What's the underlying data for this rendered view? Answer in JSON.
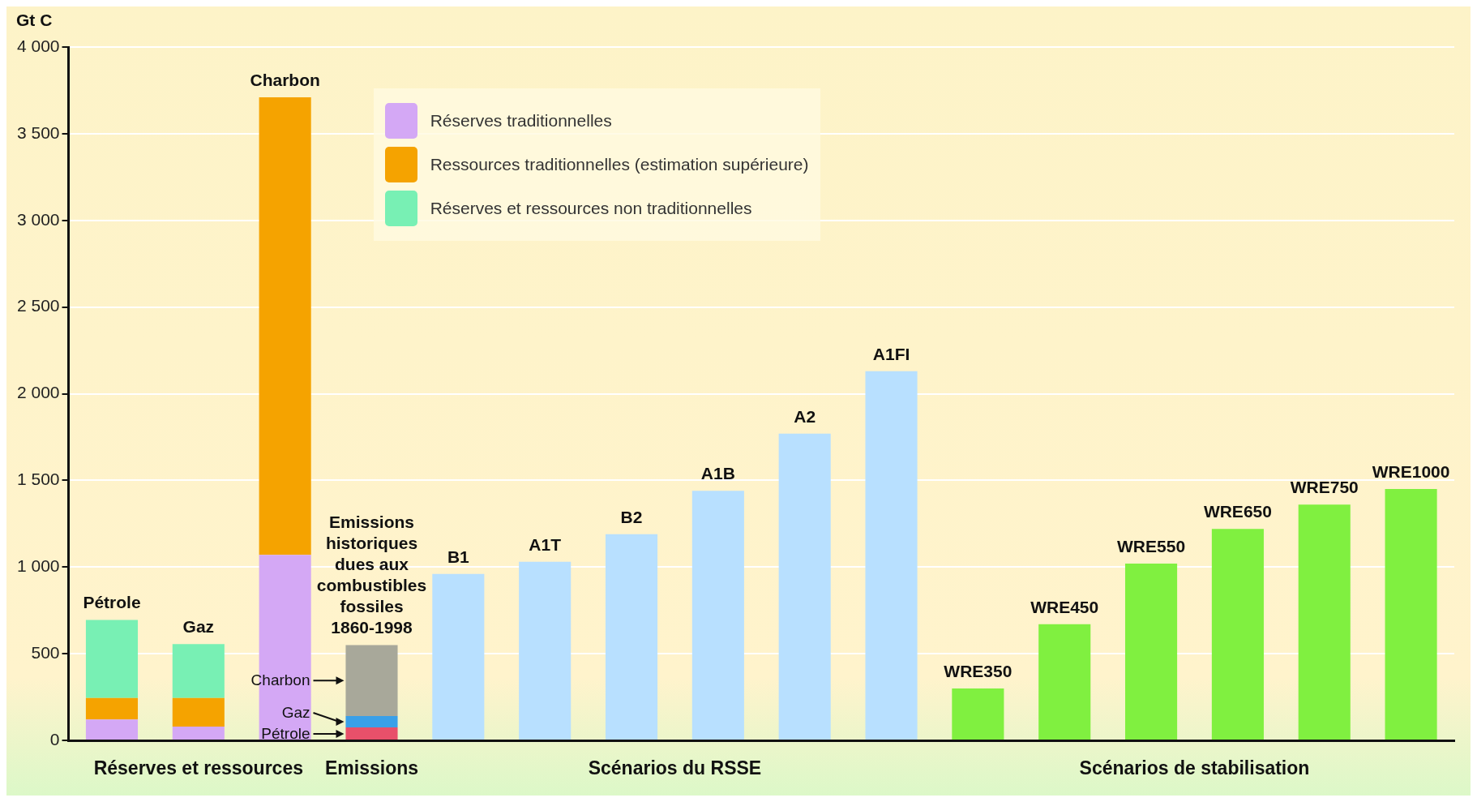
{
  "chart_data": {
    "type": "bar",
    "stacked": true,
    "ylabel": "Gt C",
    "categories": [
      "Pétrole",
      "Gaz",
      "Charbon",
      "Emissions historiques dues aux combustibles fossiles 1860-1998",
      "B1",
      "A1T",
      "B2",
      "A1B",
      "A2",
      "A1FI",
      "WRE350",
      "WRE450",
      "WRE550",
      "WRE650",
      "WRE750",
      "WRE1000"
    ],
    "series": [
      {
        "name": "Réserves traditionnelles",
        "color": "#d4a8f5",
        "values": [
          120,
          80,
          1070,
          null,
          null,
          null,
          null,
          null,
          null,
          null,
          null,
          null,
          null,
          null,
          null,
          null
        ]
      },
      {
        "name": "Ressources traditionnelles (estimation supérieure)",
        "color": "#f5a300",
        "values": [
          125,
          165,
          2640,
          null,
          null,
          null,
          null,
          null,
          null,
          null,
          null,
          null,
          null,
          null,
          null,
          null
        ]
      },
      {
        "name": "Réserves et ressources non traditionnelles",
        "color": "#78f0b4",
        "values": [
          450,
          310,
          null,
          null,
          null,
          null,
          null,
          null,
          null,
          null,
          null,
          null,
          null,
          null,
          null,
          null
        ]
      },
      {
        "name": "Pétrole",
        "color": "#e8506a",
        "values": [
          null,
          null,
          null,
          75,
          null,
          null,
          null,
          null,
          null,
          null,
          null,
          null,
          null,
          null,
          null,
          null
        ]
      },
      {
        "name": "Gaz",
        "color": "#3aa0e8",
        "values": [
          null,
          null,
          null,
          65,
          null,
          null,
          null,
          null,
          null,
          null,
          null,
          null,
          null,
          null,
          null,
          null
        ]
      },
      {
        "name": "Charbon",
        "color": "#a8a89a",
        "values": [
          null,
          null,
          null,
          410,
          null,
          null,
          null,
          null,
          null,
          null,
          null,
          null,
          null,
          null,
          null,
          null
        ]
      },
      {
        "color": "#b8e0ff",
        "values": [
          null,
          null,
          null,
          null,
          960,
          1030,
          1190,
          1440,
          1770,
          2130,
          null,
          null,
          null,
          null,
          null,
          null
        ]
      },
      {
        "color": "#80f040",
        "values": [
          null,
          null,
          null,
          null,
          null,
          null,
          null,
          null,
          null,
          null,
          300,
          670,
          1020,
          1220,
          1360,
          1450
        ]
      }
    ],
    "ylim": [
      0,
      4000
    ],
    "yticks": [
      0,
      {
        "value": 500,
        "label": "500"
      },
      {
        "value": 1000,
        "label": "1 000"
      },
      {
        "value": 1500,
        "label": "1 500"
      },
      {
        "value": 2000,
        "label": "2 000"
      },
      {
        "value": 2500,
        "label": "2 500"
      },
      {
        "value": 3000,
        "label": "3 000"
      },
      {
        "value": 3500,
        "label": "3 500"
      },
      {
        "value": 4000,
        "label": "4 000"
      }
    ],
    "grid": "y",
    "legend": "top",
    "tick_labels": "y",
    "annotations": [
      "Réserves et ressources",
      "Emissions",
      "Scénarios du RSSE",
      "Scénarios de stabilisation"
    ]
  }
}
